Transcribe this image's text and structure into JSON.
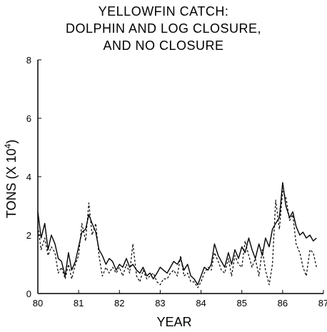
{
  "chart_data": {
    "type": "line",
    "title_lines": [
      "YELLOWFIN CATCH:",
      "DOLPHIN AND LOG CLOSURE,",
      "AND NO CLOSURE"
    ],
    "xlabel": "YEAR",
    "ylabel": "TONS (X 10",
    "ylabel_exp": "4",
    "ylabel_close": ")",
    "xlim": [
      80,
      87
    ],
    "ylim": [
      0,
      8
    ],
    "xticks": [
      80,
      81,
      82,
      83,
      84,
      85,
      86,
      87
    ],
    "yticks": [
      0,
      2,
      4,
      6,
      8
    ],
    "grid": false,
    "series": [
      {
        "style": "solid",
        "x": [
          80.0,
          80.08,
          80.17,
          80.25,
          80.33,
          80.42,
          80.5,
          80.58,
          80.67,
          80.75,
          80.83,
          80.92,
          81.0,
          81.08,
          81.17,
          81.25,
          81.33,
          81.42,
          81.5,
          81.58,
          81.67,
          81.75,
          81.83,
          81.92,
          82.0,
          82.08,
          82.17,
          82.25,
          82.33,
          82.42,
          82.5,
          82.58,
          82.67,
          82.75,
          82.83,
          82.92,
          83.0,
          83.08,
          83.17,
          83.25,
          83.33,
          83.42,
          83.5,
          83.58,
          83.67,
          83.75,
          83.83,
          83.92,
          84.0,
          84.08,
          84.17,
          84.25,
          84.33,
          84.42,
          84.5,
          84.58,
          84.67,
          84.75,
          84.83,
          84.92,
          85.0,
          85.08,
          85.17,
          85.25,
          85.33,
          85.42,
          85.5,
          85.58,
          85.67,
          85.75,
          85.83,
          85.92,
          86.0,
          86.08,
          86.17,
          86.25,
          86.33,
          86.42,
          86.5,
          86.58,
          86.67,
          86.75,
          86.83
        ],
        "y": [
          2.8,
          1.9,
          2.4,
          1.5,
          2.0,
          1.7,
          1.2,
          1.1,
          0.6,
          1.4,
          0.8,
          1.1,
          1.6,
          2.1,
          2.2,
          2.7,
          2.4,
          2.1,
          1.5,
          1.3,
          1.0,
          1.2,
          1.1,
          0.8,
          1.0,
          0.9,
          1.2,
          0.9,
          1.0,
          0.8,
          0.7,
          0.9,
          0.6,
          0.7,
          0.5,
          0.7,
          0.9,
          0.8,
          0.7,
          0.9,
          1.1,
          1.0,
          1.2,
          0.8,
          1.0,
          0.6,
          0.5,
          0.3,
          0.6,
          0.9,
          0.8,
          1.0,
          1.7,
          1.3,
          1.1,
          0.9,
          1.4,
          1.0,
          1.5,
          1.2,
          1.6,
          1.4,
          1.9,
          1.5,
          1.2,
          1.7,
          1.3,
          1.9,
          1.6,
          2.2,
          2.4,
          2.6,
          3.8,
          3.0,
          2.6,
          2.8,
          2.3,
          2.0,
          2.1,
          1.9,
          2.0,
          1.8,
          1.9
        ]
      },
      {
        "style": "dashed",
        "x": [
          80.0,
          80.08,
          80.17,
          80.25,
          80.33,
          80.42,
          80.5,
          80.58,
          80.67,
          80.75,
          80.83,
          80.92,
          81.0,
          81.08,
          81.17,
          81.25,
          81.33,
          81.42,
          81.5,
          81.58,
          81.67,
          81.75,
          81.83,
          81.92,
          82.0,
          82.08,
          82.17,
          82.25,
          82.33,
          82.42,
          82.5,
          82.58,
          82.67,
          82.75,
          82.83,
          82.92,
          83.0,
          83.08,
          83.17,
          83.25,
          83.33,
          83.42,
          83.5,
          83.58,
          83.67,
          83.75,
          83.83,
          83.92,
          84.0,
          84.08,
          84.17,
          84.25,
          84.33,
          84.42,
          84.5,
          84.58,
          84.67,
          84.75,
          84.83,
          84.92,
          85.0,
          85.08,
          85.17,
          85.25,
          85.33,
          85.42,
          85.5,
          85.58,
          85.67,
          85.75,
          85.83,
          85.92,
          86.0,
          86.08,
          86.17,
          86.25,
          86.33,
          86.42,
          86.5,
          86.58,
          86.67,
          86.75,
          86.83
        ],
        "y": [
          2.3,
          1.5,
          1.9,
          1.3,
          1.6,
          1.4,
          0.7,
          0.9,
          0.5,
          1.0,
          0.5,
          1.0,
          1.3,
          2.4,
          1.8,
          3.1,
          2.0,
          2.4,
          1.3,
          0.6,
          0.9,
          0.7,
          0.9,
          0.7,
          0.9,
          0.6,
          1.0,
          0.7,
          1.7,
          0.6,
          0.4,
          0.8,
          0.5,
          0.6,
          0.7,
          0.4,
          0.3,
          0.5,
          0.5,
          0.7,
          0.8,
          0.6,
          1.3,
          0.6,
          0.7,
          0.4,
          0.4,
          0.2,
          0.4,
          0.7,
          0.9,
          0.8,
          1.4,
          1.1,
          0.8,
          0.7,
          1.2,
          0.6,
          1.3,
          1.0,
          0.9,
          1.8,
          1.3,
          0.9,
          1.2,
          0.6,
          1.5,
          0.8,
          0.3,
          1.0,
          3.2,
          2.2,
          3.5,
          3.3,
          2.5,
          2.7,
          1.7,
          1.4,
          0.9,
          0.6,
          1.5,
          1.4,
          0.9
        ]
      }
    ]
  }
}
